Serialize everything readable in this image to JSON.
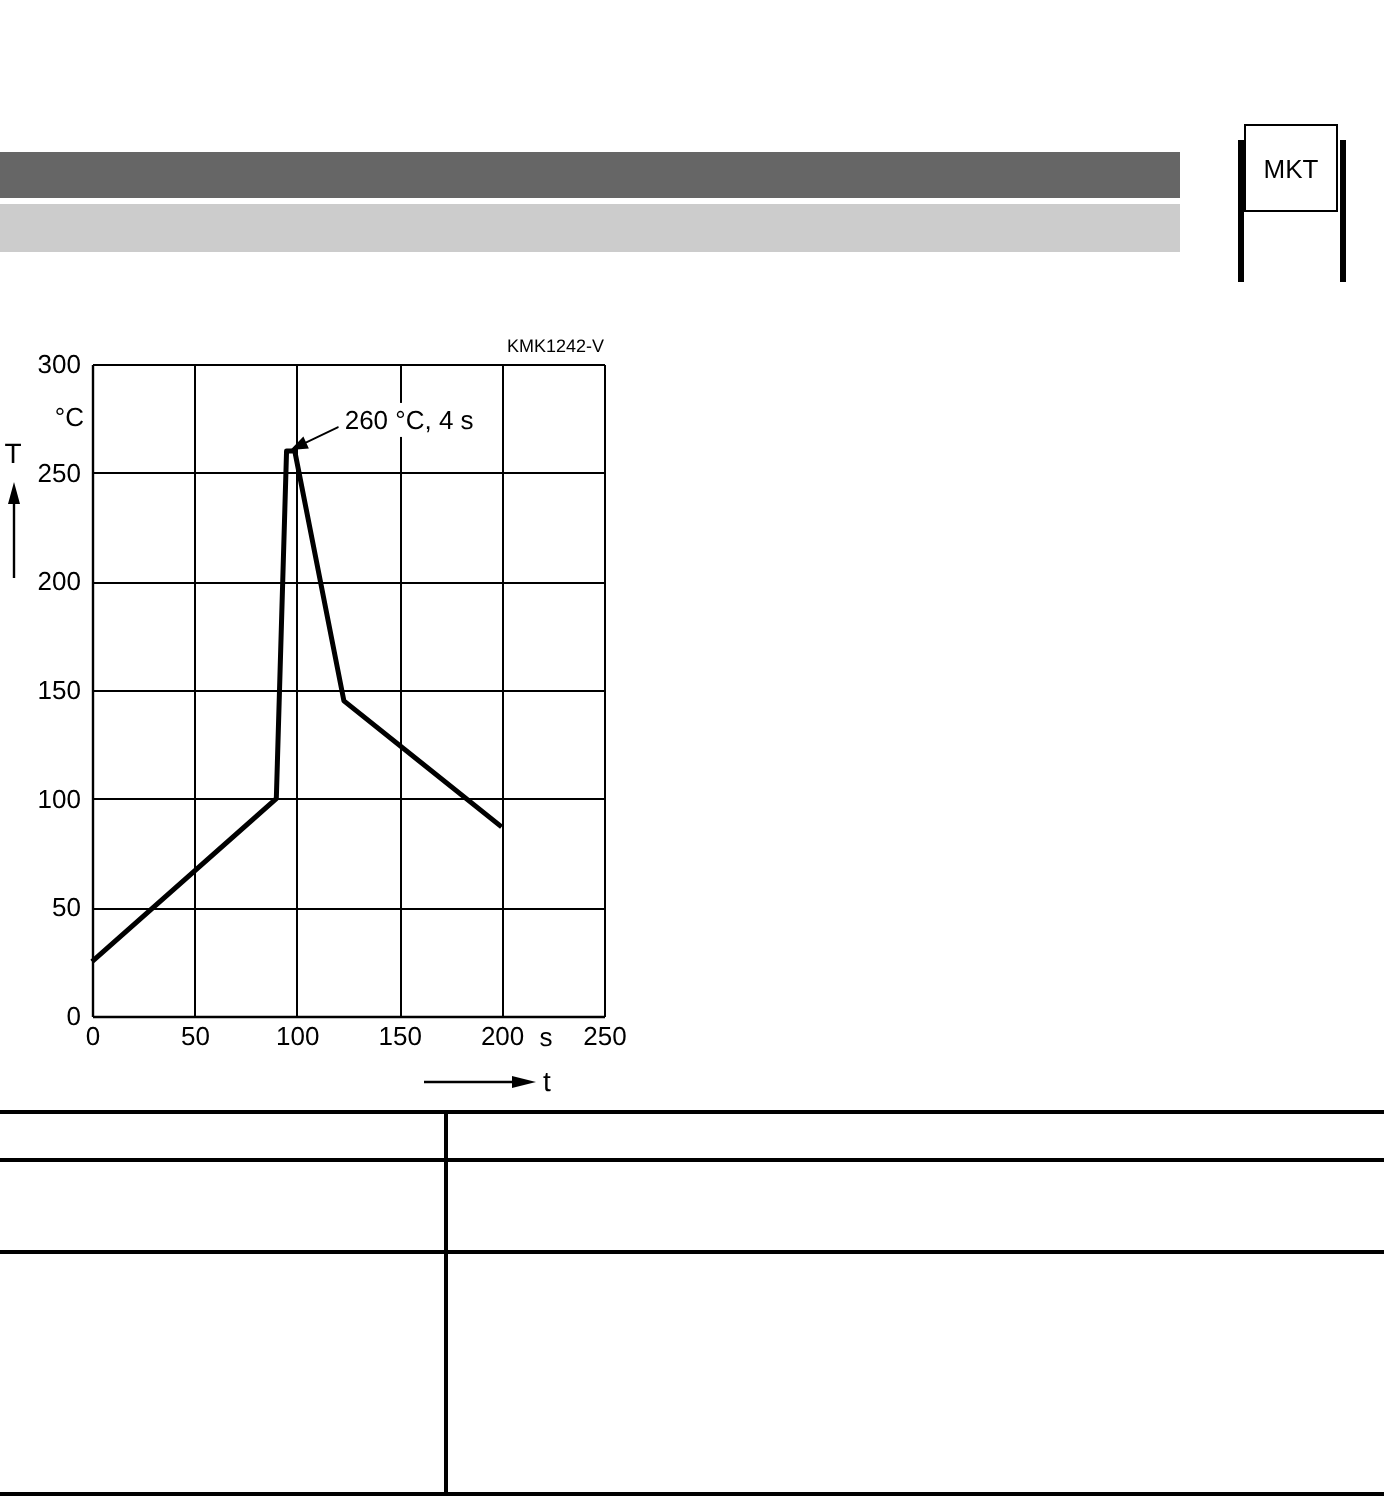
{
  "chart_data": {
    "type": "line",
    "xlabel": "t",
    "ylabel": "T",
    "x": [
      0,
      90,
      95,
      99,
      123,
      200
    ],
    "values": [
      25,
      100,
      260,
      260,
      145,
      87
    ],
    "color": "#000000",
    "xlim": [
      0,
      250
    ],
    "xticks": [
      0,
      50,
      100,
      150,
      200,
      250
    ],
    "ylim": [
      0,
      300
    ],
    "yticks": [
      0,
      50,
      100,
      150,
      200,
      250,
      300
    ],
    "grid": true,
    "marker": "none",
    "line_style": "solid",
    "annotations": [
      {
        "text": "260 °C, 4 s",
        "x": 98,
        "y": 260
      },
      "°C",
      "s",
      "KMK1242-V",
      "MKT"
    ]
  }
}
